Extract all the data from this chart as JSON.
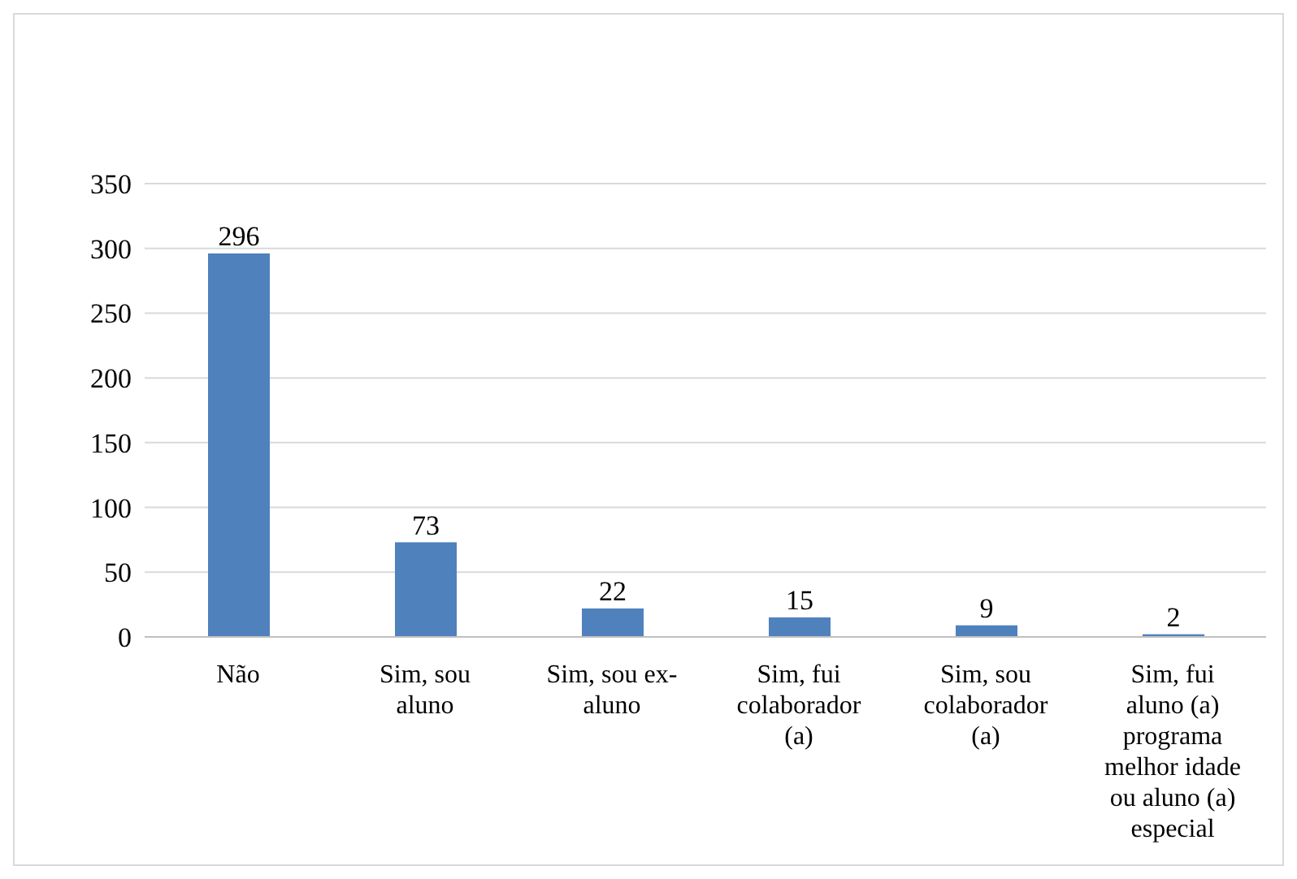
{
  "chart_data": {
    "type": "bar",
    "categories": [
      "Não",
      "Sim, sou aluno",
      "Sim, sou ex-aluno",
      "Sim, fui colaborador (a)",
      "Sim, sou colaborador (a)",
      "Sim, fui aluno (a) programa melhor idade ou aluno (a) especial"
    ],
    "values": [
      296,
      73,
      22,
      15,
      9,
      2
    ],
    "color": "#4f81bd",
    "ylim": [
      0,
      350
    ],
    "yticks": [
      0,
      50,
      100,
      150,
      200,
      250,
      300,
      350
    ],
    "grid": "y",
    "data_labels": true,
    "legend": false
  }
}
